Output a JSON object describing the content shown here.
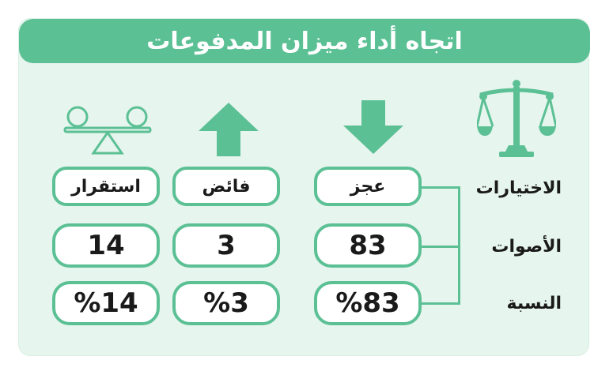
{
  "title": "اتجاه أداء ميزان المدفوعات",
  "row_labels": {
    "choices": "الاختيارات",
    "votes": "الأصوات",
    "ratio": "النسبة"
  },
  "columns": [
    {
      "header": "عجز",
      "votes": "83",
      "percent": "%83",
      "icon": "down-arrow-icon"
    },
    {
      "header": "فائض",
      "votes": "3",
      "percent": "%3",
      "icon": "up-arrow-icon"
    },
    {
      "header": "استقرار",
      "votes": "14",
      "percent": "%14",
      "icon": "balanced-seesaw-icon"
    }
  ],
  "corner_icon": "scales-of-justice-icon",
  "colors": {
    "accent": "#5cc095",
    "panel": "#e6f5ee",
    "text": "#1a1a1a"
  }
}
